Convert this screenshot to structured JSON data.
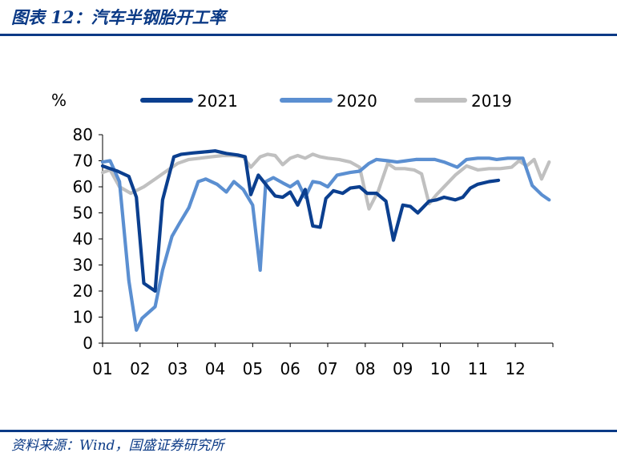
{
  "page": {
    "title": "图表 12：汽车半钢胎开工率",
    "source": "资料来源：Wind，国盛证券研究所"
  },
  "chart_data": {
    "type": "line",
    "ylabel": "%",
    "ylim": [
      0,
      80
    ],
    "yticks": [
      0,
      10,
      20,
      30,
      40,
      50,
      60,
      70,
      80
    ],
    "xlim": [
      1,
      13
    ],
    "xticks": [
      "01",
      "02",
      "03",
      "04",
      "05",
      "06",
      "07",
      "08",
      "09",
      "10",
      "11",
      "12"
    ],
    "legend_position": "top",
    "grid": false,
    "series": [
      {
        "name": "2021",
        "color": "#0b3f8f",
        "x": [
          1.0,
          1.2,
          1.4,
          1.7,
          1.9,
          2.1,
          2.4,
          2.6,
          2.9,
          3.1,
          3.4,
          3.8,
          4.0,
          4.3,
          4.6,
          4.8,
          4.95,
          5.15,
          5.4,
          5.6,
          5.8,
          6.0,
          6.2,
          6.4,
          6.6,
          6.8,
          6.95,
          7.15,
          7.4,
          7.6,
          7.85,
          8.05,
          8.3,
          8.55,
          8.75,
          9.0,
          9.2,
          9.4,
          9.7,
          9.9,
          10.1,
          10.4,
          10.6,
          10.8,
          11.0,
          11.3,
          11.55
        ],
        "y": [
          68,
          67,
          66,
          64,
          56,
          23,
          20,
          55,
          71.5,
          72.5,
          73,
          73.5,
          73.8,
          72.8,
          72.2,
          71.5,
          57,
          64.5,
          60,
          56.5,
          56,
          58,
          53,
          59,
          45,
          44.5,
          55.5,
          58.5,
          57.5,
          59.5,
          60,
          57.5,
          57.5,
          54.5,
          39.5,
          53,
          52.5,
          50,
          54.5,
          55,
          56,
          55,
          56,
          59.5,
          61,
          62,
          62.5
        ]
      },
      {
        "name": "2020",
        "color": "#5b8fd1",
        "x": [
          1.0,
          1.2,
          1.45,
          1.7,
          1.9,
          2.05,
          2.4,
          2.6,
          2.85,
          3.05,
          3.3,
          3.55,
          3.75,
          4.05,
          4.3,
          4.5,
          4.75,
          5.0,
          5.2,
          5.35,
          5.55,
          5.8,
          6.0,
          6.2,
          6.4,
          6.6,
          6.8,
          7.0,
          7.25,
          7.6,
          7.85,
          8.1,
          8.3,
          8.6,
          8.85,
          9.1,
          9.35,
          9.6,
          9.85,
          10.1,
          10.45,
          10.7,
          11.0,
          11.3,
          11.5,
          11.8,
          12.0,
          12.2,
          12.45,
          12.7,
          12.9
        ],
        "y": [
          69.5,
          70,
          62,
          24,
          5,
          9.5,
          14,
          28,
          41,
          46,
          52,
          62,
          63,
          61,
          58,
          62,
          59,
          53,
          28,
          62,
          63.5,
          61.5,
          60,
          62,
          56,
          62,
          61.5,
          60,
          64.5,
          65.5,
          66,
          69,
          70.5,
          70,
          69.5,
          70,
          70.5,
          70.5,
          70.5,
          69.5,
          67.5,
          70.5,
          71,
          71,
          70.5,
          71,
          71,
          71,
          60.5,
          57,
          55
        ]
      },
      {
        "name": "2019",
        "color": "#c0c0c0",
        "x": [
          1.0,
          1.2,
          1.45,
          1.75,
          2.1,
          2.4,
          2.7,
          3.0,
          3.3,
          3.6,
          3.9,
          4.2,
          4.5,
          4.75,
          4.95,
          5.2,
          5.4,
          5.6,
          5.8,
          6.0,
          6.2,
          6.4,
          6.6,
          6.8,
          7.0,
          7.3,
          7.6,
          7.85,
          8.1,
          8.35,
          8.6,
          8.8,
          9.05,
          9.3,
          9.5,
          9.7,
          9.9,
          10.1,
          10.4,
          10.7,
          11.0,
          11.3,
          11.6,
          11.9,
          12.1,
          12.3,
          12.5,
          12.7,
          12.9
        ],
        "y": [
          65.5,
          66.5,
          60,
          57.5,
          60,
          63,
          66,
          69,
          70.5,
          71,
          71.5,
          72,
          72,
          71.5,
          67.5,
          71.5,
          72.5,
          72,
          68.5,
          71,
          72,
          71,
          72.5,
          71.5,
          71,
          70.5,
          69.5,
          67.5,
          51.5,
          58.5,
          69,
          67,
          67,
          66.5,
          65,
          53.5,
          57,
          60,
          64.5,
          68,
          66.5,
          67,
          67,
          67.5,
          70,
          68,
          70.5,
          63,
          69.5
        ]
      }
    ]
  }
}
